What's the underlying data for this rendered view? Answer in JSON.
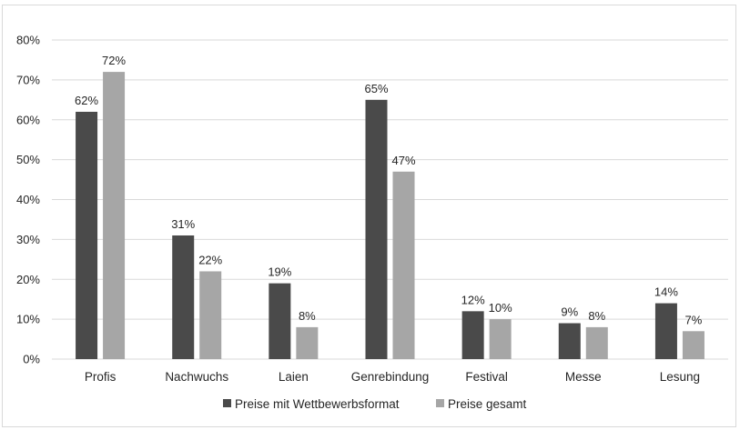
{
  "chart_data": {
    "type": "bar",
    "title": "",
    "xlabel": "",
    "ylabel": "",
    "ylim": [
      0,
      80
    ],
    "yticks": [
      0,
      10,
      20,
      30,
      40,
      50,
      60,
      70,
      80
    ],
    "ytick_labels": [
      "0%",
      "10%",
      "20%",
      "30%",
      "40%",
      "50%",
      "60%",
      "70%",
      "80%"
    ],
    "grid": true,
    "legend_position": "bottom",
    "categories": [
      "Profis",
      "Nachwuchs",
      "Laien",
      "Genrebindung",
      "Festival",
      "Messe",
      "Lesung"
    ],
    "series": [
      {
        "name": "Preise mit Wettbewerbsformat",
        "color": "#4a4a4a",
        "values": [
          62,
          31,
          19,
          65,
          12,
          9,
          14
        ],
        "labels": [
          "62%",
          "31%",
          "19%",
          "65%",
          "12%",
          "9%",
          "14%"
        ]
      },
      {
        "name": "Preise gesamt",
        "color": "#a6a6a6",
        "values": [
          72,
          22,
          8,
          47,
          10,
          8,
          7
        ],
        "labels": [
          "72%",
          "22%",
          "8%",
          "47%",
          "10%",
          "8%",
          "7%"
        ]
      }
    ]
  }
}
